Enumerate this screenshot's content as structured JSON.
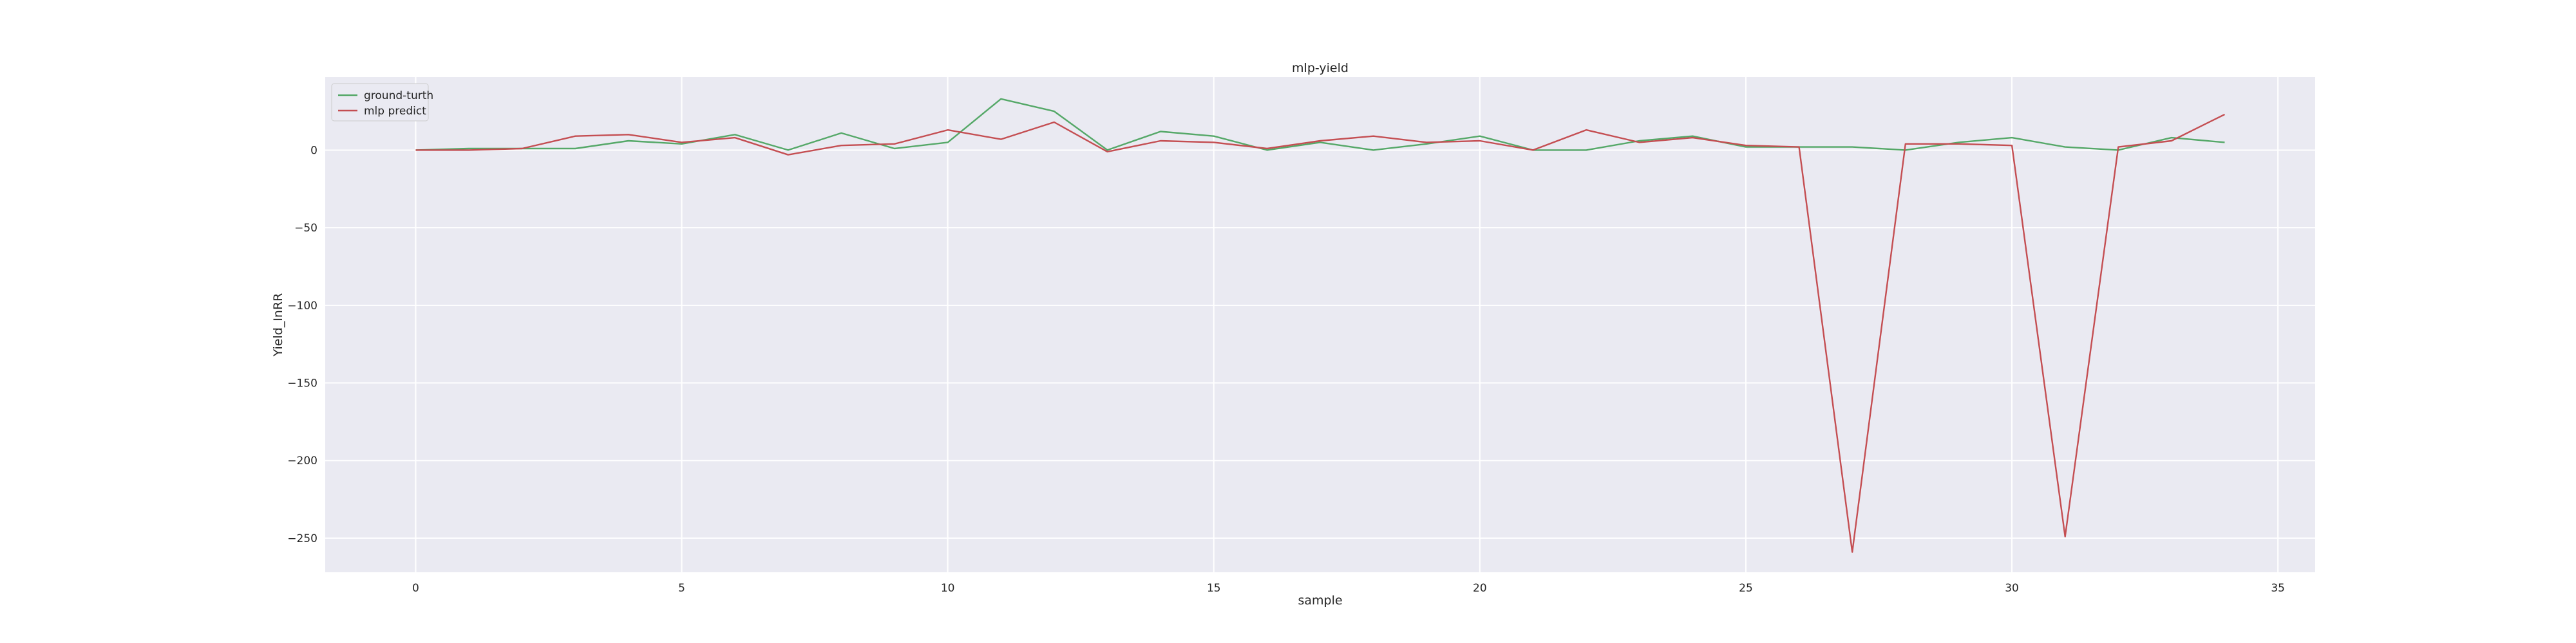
{
  "chart_data": {
    "type": "line",
    "title": "mlp-yield",
    "xlabel": "sample",
    "ylabel": "Yield_InRR",
    "xlim": [
      -1.7,
      35.7
    ],
    "ylim": [
      -272,
      47
    ],
    "xticks": [
      0,
      5,
      10,
      15,
      20,
      25,
      30,
      35
    ],
    "xtick_labels": [
      "0",
      "5",
      "10",
      "15",
      "20",
      "25",
      "30",
      "35"
    ],
    "yticks": [
      0,
      -50,
      -100,
      -150,
      -200,
      -250
    ],
    "ytick_labels": [
      "0",
      "−50",
      "−100",
      "−150",
      "−200",
      "−250"
    ],
    "grid": true,
    "legend_position": "top-left",
    "background_color": "#eaeaf2",
    "series": [
      {
        "name": "ground-turth",
        "color": "#55a868",
        "x": [
          0,
          1,
          2,
          3,
          4,
          5,
          6,
          7,
          8,
          9,
          10,
          11,
          12,
          13,
          14,
          15,
          16,
          17,
          18,
          19,
          20,
          21,
          22,
          23,
          24,
          25,
          26,
          27,
          28,
          29,
          30,
          31,
          32,
          33,
          34
        ],
        "values": [
          0,
          1,
          1,
          1,
          6,
          4,
          10,
          0,
          11,
          1,
          5,
          33,
          25,
          0,
          12,
          9,
          0,
          5,
          0,
          4,
          9,
          0,
          0,
          6,
          9,
          2,
          2,
          2,
          0,
          5,
          8,
          2,
          0,
          8,
          5
        ]
      },
      {
        "name": "mlp predict",
        "color": "#c44e52",
        "x": [
          0,
          1,
          2,
          3,
          4,
          5,
          6,
          7,
          8,
          9,
          10,
          11,
          12,
          13,
          14,
          15,
          16,
          17,
          18,
          19,
          20,
          21,
          22,
          23,
          24,
          25,
          26,
          27,
          28,
          29,
          30,
          31,
          32,
          33,
          34
        ],
        "values": [
          0,
          0,
          1,
          9,
          10,
          5,
          8,
          -3,
          3,
          4,
          13,
          7,
          18,
          -1,
          6,
          5,
          1,
          6,
          9,
          5,
          6,
          0,
          13,
          5,
          8,
          3,
          2,
          -259,
          4,
          4,
          3,
          -249,
          2,
          6,
          23
        ]
      }
    ]
  }
}
